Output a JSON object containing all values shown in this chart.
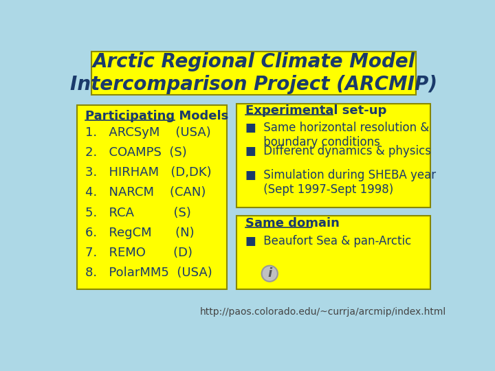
{
  "background_color": "#add8e6",
  "title_box_color": "#ffff00",
  "title_text": "Arctic Regional Climate Model\nIntercomparison Project (ARCMIP)",
  "title_text_color": "#1a3a6b",
  "title_fontsize": 20,
  "left_box_color": "#ffff00",
  "left_box_title": "Participating Models",
  "left_box_items": [
    "1.   ARCSyM    (USA)",
    "2.   COAMPS  (S)",
    "3.   HIRHAM   (D,DK)",
    "4.   NARCM    (CAN)",
    "5.   RCA          (S)",
    "6.   RegCM      (N)",
    "7.   REMO       (D)",
    "8.   PolarMM5  (USA)"
  ],
  "top_right_box_color": "#ffff00",
  "top_right_title": "Experimental set-up",
  "top_right_items": [
    "▧  Same horizontal resolution &\n     boundary conditions",
    "▧  Different dynamics & physics",
    "▧  Simulation during SHEBA year\n     (Sept 1997-Sept 1998)"
  ],
  "bottom_right_box_color": "#ffff00",
  "bottom_right_title": "Same domain",
  "bottom_right_items": [
    "▧  Beaufort Sea & pan-Arctic"
  ],
  "text_color": "#1a3a6b",
  "body_fontsize": 13,
  "url_text": "http://paos.colorado.edu/~currja/arcmip/index.html",
  "url_color": "#444444",
  "url_fontsize": 10
}
